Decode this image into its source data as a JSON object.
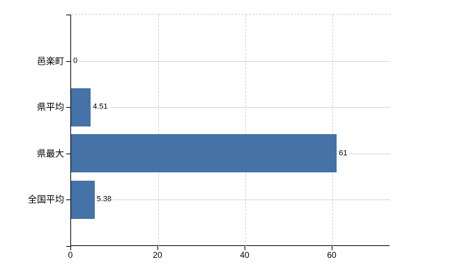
{
  "chart_data": {
    "type": "bar",
    "orientation": "horizontal",
    "title": "",
    "xlabel": "",
    "ylabel": "",
    "categories": [
      "邑楽町",
      "県平均",
      "県最大",
      "全国平均"
    ],
    "values": [
      0,
      4.51,
      61,
      5.38
    ],
    "value_labels": [
      "0",
      "4.51",
      "61",
      "5.38"
    ],
    "x_ticks": [
      0,
      20,
      40,
      60
    ],
    "x_tick_labels": [
      "0",
      "20",
      "40",
      "60"
    ],
    "xlim": [
      0,
      73.3
    ],
    "grid": true,
    "legend": false,
    "colors": {
      "bar": "#4572a7",
      "grid": "#d3d3d3",
      "axis": "#000000",
      "background": "#ffffff",
      "text": "#000000"
    }
  }
}
